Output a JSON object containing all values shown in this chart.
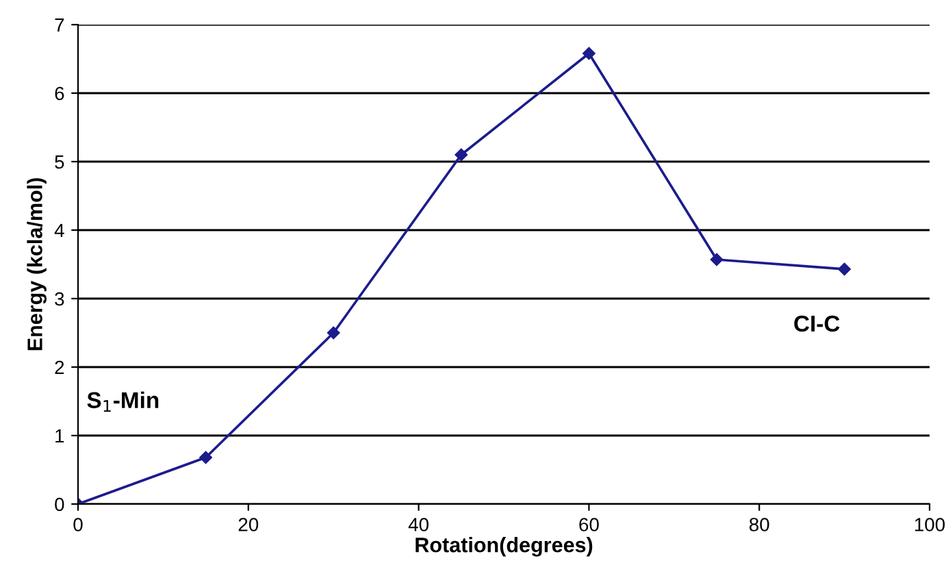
{
  "chart_data": {
    "type": "line",
    "xlabel": "Rotation(degrees)",
    "ylabel": "Energy (kcla/mol)",
    "x": [
      0,
      15,
      30,
      45,
      60,
      75,
      90
    ],
    "series": [
      {
        "color": "#1c1c8c",
        "values": [
          0,
          0.68,
          2.5,
          5.1,
          6.58,
          3.57,
          3.43
        ]
      }
    ],
    "xlim": [
      0,
      100
    ],
    "xticks": [
      0,
      20,
      40,
      60,
      80,
      100
    ],
    "ylim": [
      0,
      7
    ],
    "yticks": [
      0,
      1,
      2,
      3,
      4,
      5,
      6,
      7
    ],
    "grid": "y",
    "marker": "diamond",
    "line_style": "solid",
    "annotations": [
      "S$_{1}$-Min",
      "CI-C"
    ]
  }
}
